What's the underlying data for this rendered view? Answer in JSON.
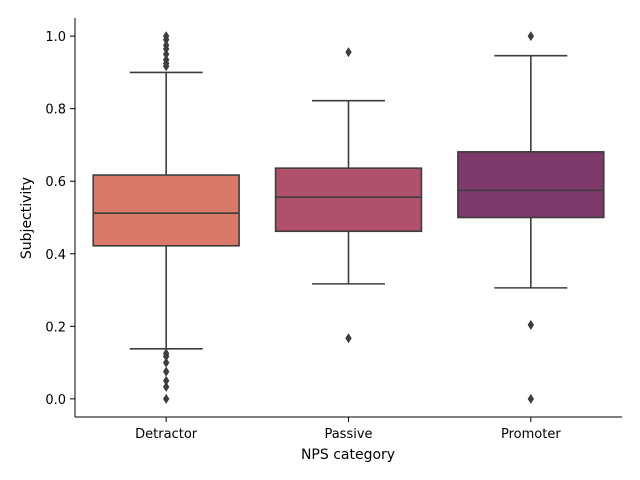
{
  "chart_data": {
    "type": "box",
    "xlabel": "NPS category",
    "ylabel": "Subjectivity",
    "ylim": [
      -0.05,
      1.05
    ],
    "yticks": [
      "0.0",
      "0.2",
      "0.4",
      "0.6",
      "0.8",
      "1.0"
    ],
    "grid": false,
    "categories": [
      "Detractor",
      "Passive",
      "Promoter"
    ],
    "colors": [
      "#d9796a",
      "#b0506b",
      "#7d3a6b"
    ],
    "boxes": [
      {
        "category": "Detractor",
        "whisker_low": 0.138,
        "q1": 0.422,
        "median": 0.512,
        "q3": 0.617,
        "whisker_high": 0.9,
        "outliers": [
          1.0,
          0.99,
          0.975,
          0.965,
          0.95,
          0.935,
          0.925,
          0.917,
          0.125,
          0.117,
          0.1,
          0.075,
          0.05,
          0.033,
          0.0
        ]
      },
      {
        "category": "Passive",
        "whisker_low": 0.317,
        "q1": 0.462,
        "median": 0.556,
        "q3": 0.636,
        "whisker_high": 0.822,
        "outliers": [
          0.956,
          0.167
        ]
      },
      {
        "category": "Promoter",
        "whisker_low": 0.306,
        "q1": 0.5,
        "median": 0.575,
        "q3": 0.681,
        "whisker_high": 0.946,
        "outliers": [
          1.0,
          0.204,
          0.0
        ]
      }
    ]
  }
}
